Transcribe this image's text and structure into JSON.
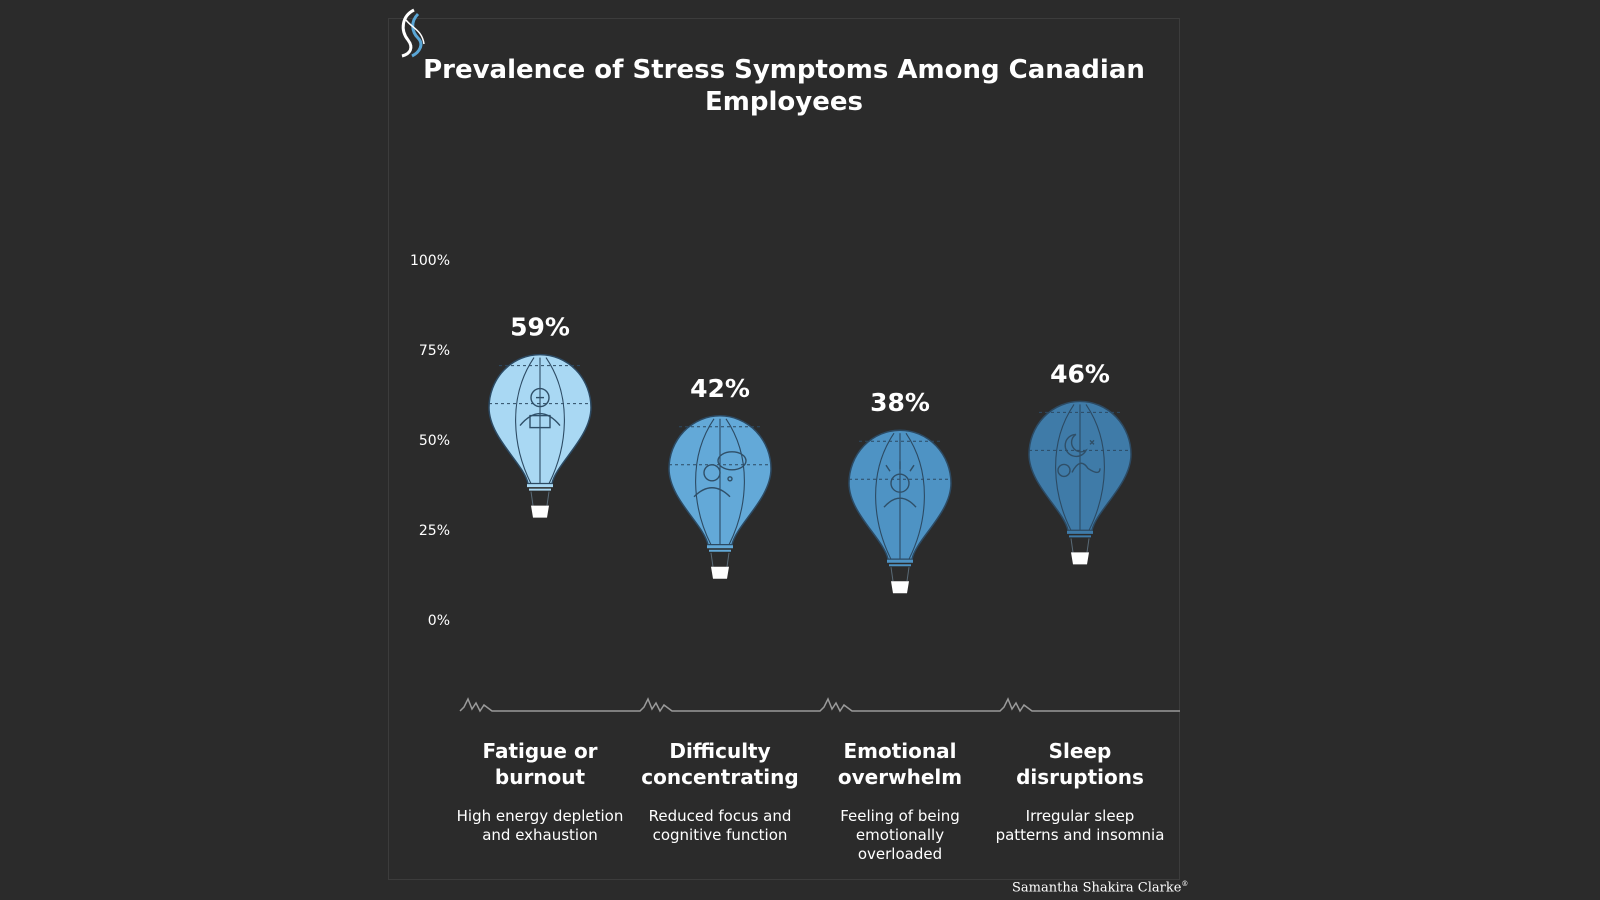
{
  "title": "Prevalence of Stress Symptoms Among Canadian Employees",
  "signature": "Samantha Shakira Clarke",
  "signature_trademark": "®",
  "colors": {
    "background": "#2b2b2b",
    "balloon_series": [
      "#a9d8f3",
      "#63a9d8",
      "#4e93c4",
      "#3f7ba8"
    ],
    "axis_line": "#9a9a9a",
    "text": "#ffffff"
  },
  "chart_data": {
    "type": "bar",
    "style": "hot-air-balloon pictograph",
    "categories": [
      "Fatigue or burnout",
      "Difficulty concentrating",
      "Emotional overwhelm",
      "Sleep disruptions"
    ],
    "values": [
      59,
      42,
      38,
      46
    ],
    "value_labels": [
      "59%",
      "42%",
      "38%",
      "46%"
    ],
    "descriptions": [
      "High energy depletion and exhaustion",
      "Reduced focus and cognitive function",
      "Feeling of being emotionally overloaded",
      "Irregular sleep patterns and insomnia"
    ],
    "icons": [
      "worker-at-desk-icon",
      "thought-bubble-person-icon",
      "stressed-person-icon",
      "moon-sleep-icon"
    ],
    "ylim": [
      0,
      100
    ],
    "yticks": [
      "0%",
      "25%",
      "50%",
      "75%",
      "100%"
    ],
    "grid": false,
    "legend": "none"
  }
}
